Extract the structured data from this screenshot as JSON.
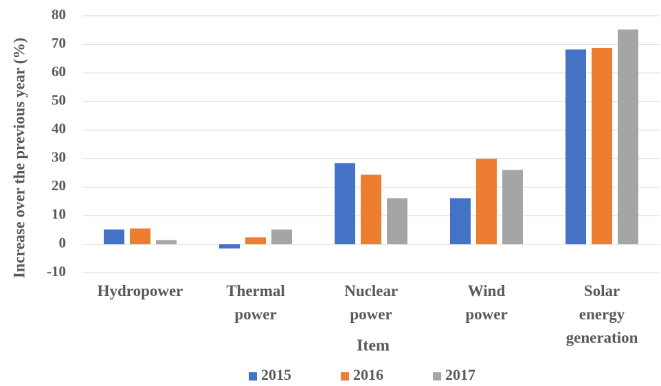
{
  "chart_data": {
    "type": "bar",
    "x_label": "Item",
    "y_label": "Increase over the previous year (%)",
    "categories": [
      "Hydropower",
      "Thermal power",
      "Nuclear power",
      "Wind power",
      "Solar energy generation"
    ],
    "series": [
      {
        "name": "2015",
        "color": "#4472c4",
        "values": [
          5.1,
          -1.5,
          28.4,
          16.1,
          68.2
        ]
      },
      {
        "name": "2016",
        "color": "#ed7d31",
        "values": [
          5.5,
          2.4,
          24.3,
          29.9,
          68.7
        ]
      },
      {
        "name": "2017",
        "color": "#a5a5a5",
        "values": [
          1.4,
          5.1,
          16.1,
          26.0,
          75.2
        ]
      }
    ],
    "ylim": [
      -10,
      80
    ],
    "yticks": [
      -10,
      0,
      10,
      20,
      30,
      40,
      50,
      60,
      70,
      80
    ],
    "grid": true,
    "legend": "bottom"
  }
}
